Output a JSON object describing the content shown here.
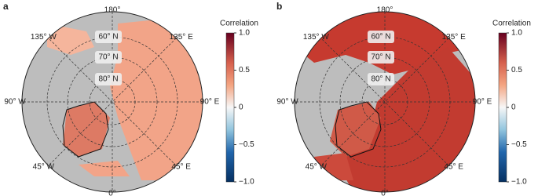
{
  "panels": [
    {
      "label": "a",
      "longitude_labels": [
        "180°",
        "135° E",
        "90° E",
        "45° E",
        "0°",
        "45° W",
        "90° W",
        "135° W"
      ],
      "latitude_labels": [
        "60° N",
        "70° N",
        "80° N"
      ],
      "colorbar": {
        "title": "Correlation",
        "lim": [
          -1,
          1
        ],
        "ticks": [
          {
            "value": 1,
            "label": "1.0"
          },
          0.5,
          0,
          {
            "value": -0.5,
            "label": "−0.5"
          },
          {
            "value": -1,
            "label": "−1.0"
          }
        ]
      }
    },
    {
      "label": "b",
      "longitude_labels": [
        "180°",
        "135° E",
        "90° E",
        "45° E",
        "0°",
        "45° W",
        "90° W",
        "135° W"
      ],
      "latitude_labels": [
        "60° N",
        "70° N",
        "80° N"
      ],
      "colorbar": {
        "title": "Correlation",
        "lim": [
          -1,
          1
        ],
        "ticks": [
          {
            "value": 1,
            "label": "1.0"
          },
          0.5,
          0,
          {
            "value": -0.5,
            "label": "−0.5"
          },
          {
            "value": -1,
            "label": "−1.0"
          }
        ]
      }
    }
  ]
}
